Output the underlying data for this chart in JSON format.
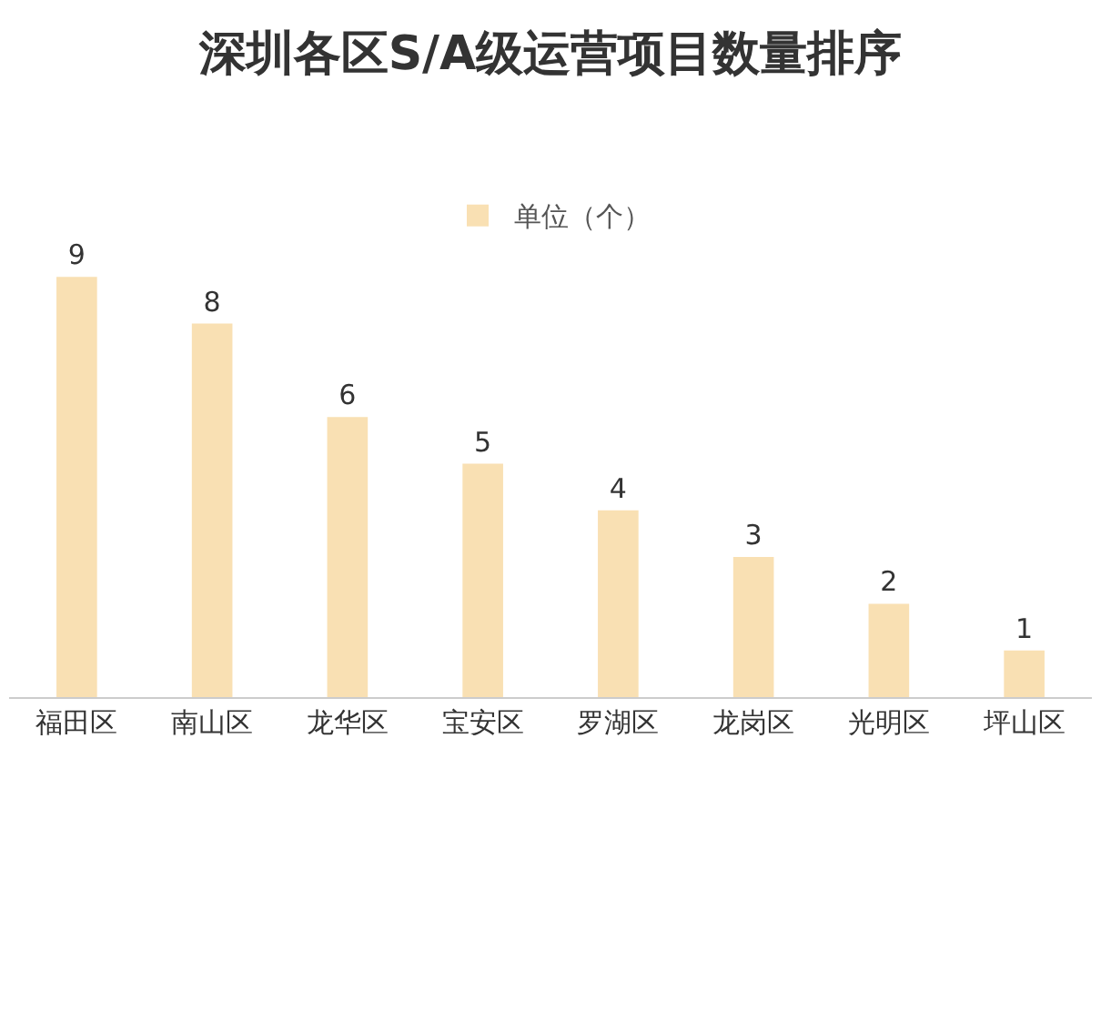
{
  "chart_data": {
    "type": "bar",
    "title": "深圳各区S/A级运营项目数量排序",
    "categories": [
      "福田区",
      "南山区",
      "龙华区",
      "宝安区",
      "罗湖区",
      "龙岗区",
      "光明区",
      "坪山区"
    ],
    "series": [
      {
        "name": "单位（个）",
        "color": "#f9e0b3",
        "values": [
          9,
          8,
          6,
          5,
          4,
          3,
          2,
          1
        ]
      }
    ],
    "data_labels": true,
    "legend": "top",
    "grid": false,
    "tick_labels": "x"
  }
}
